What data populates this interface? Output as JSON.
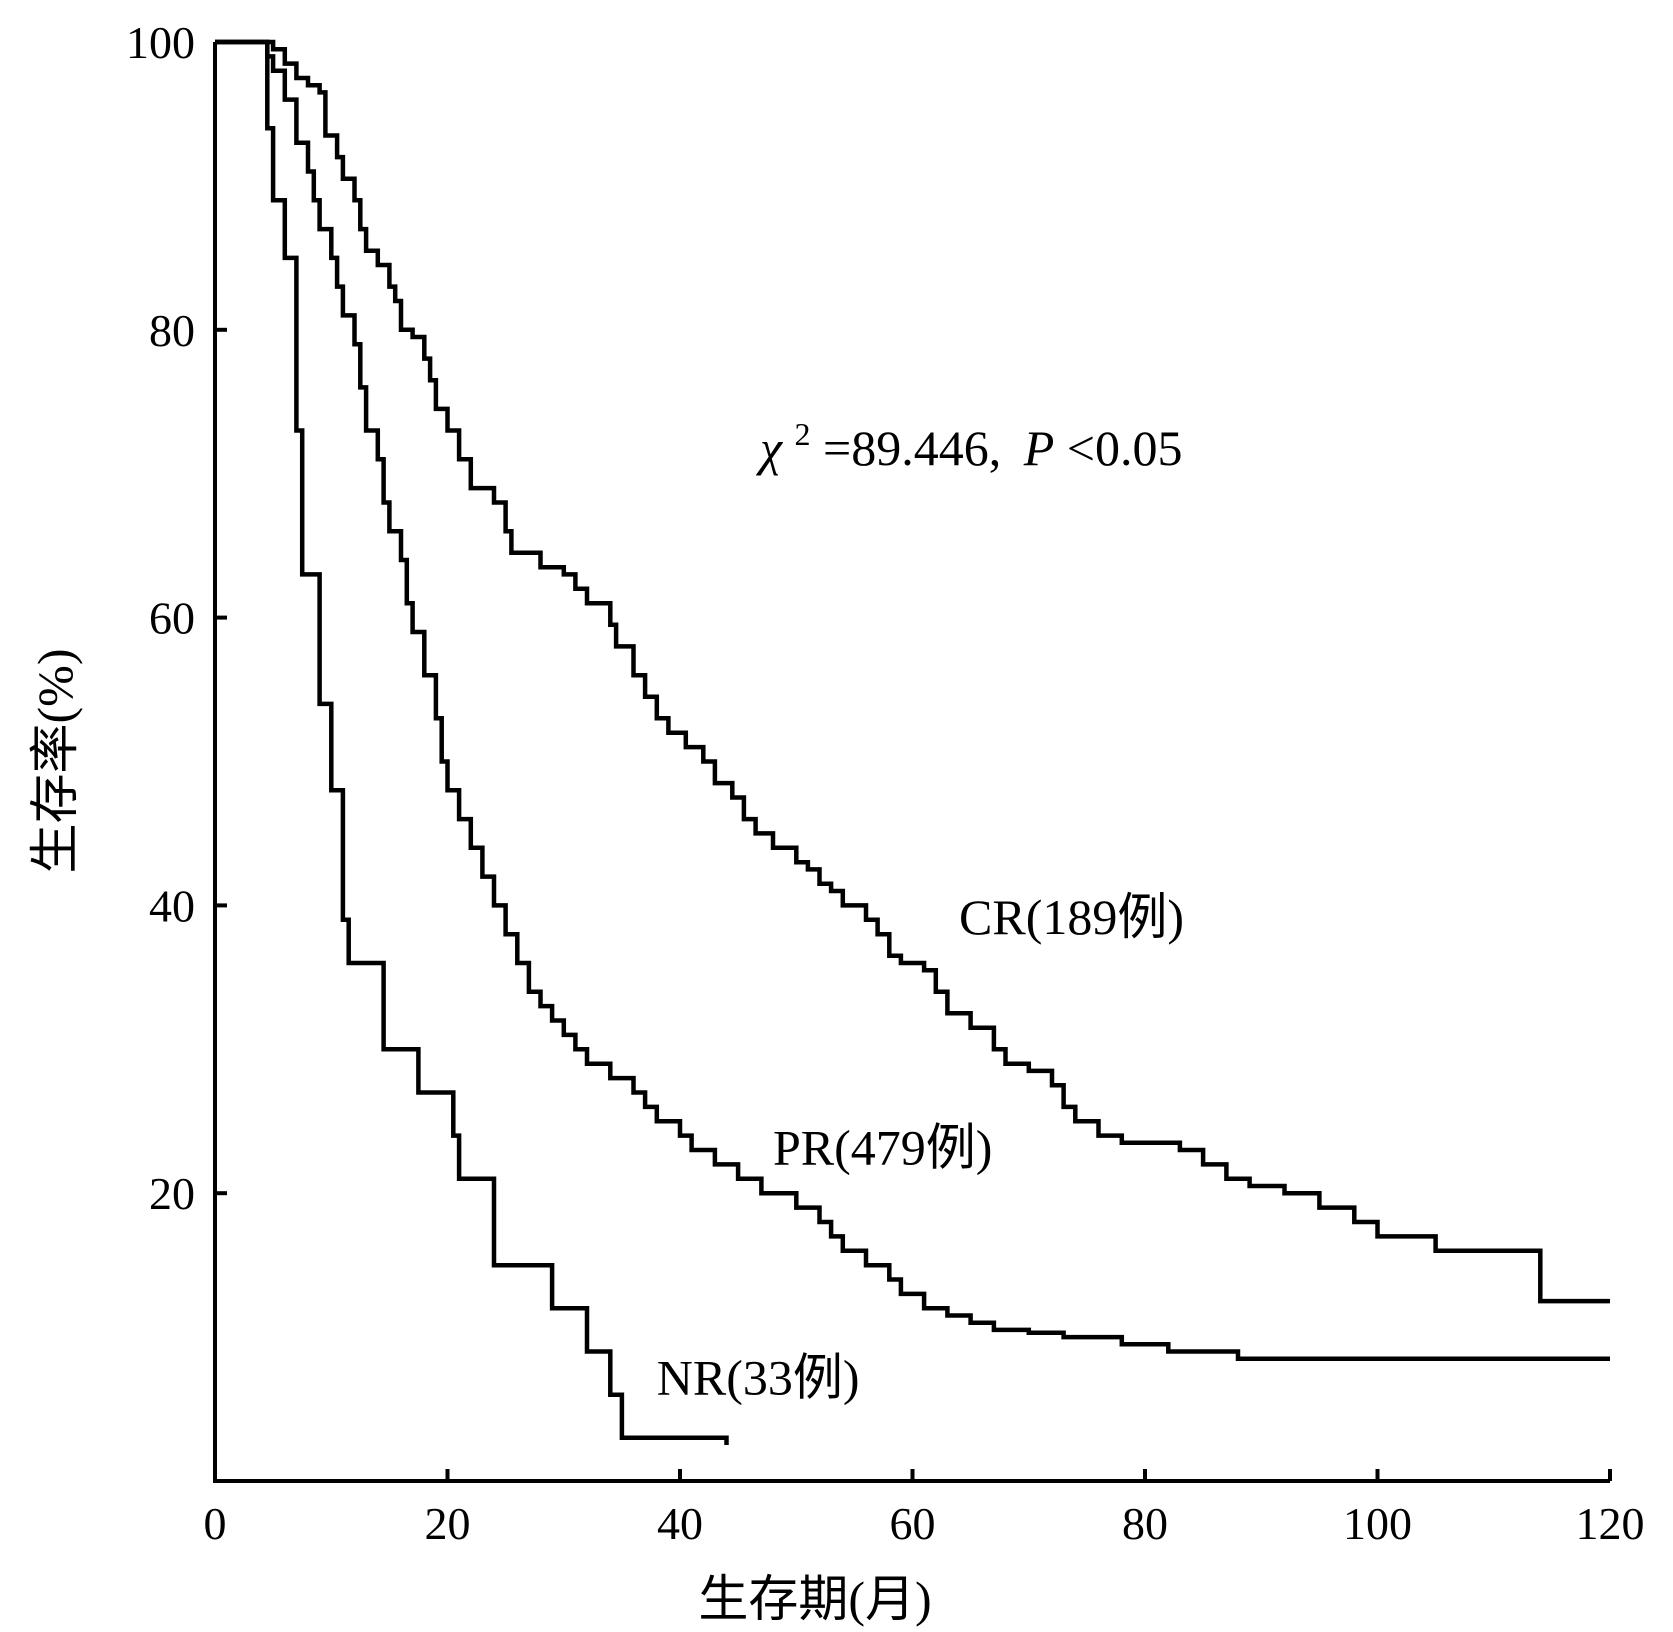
{
  "chart_data": {
    "type": "line",
    "xlabel": "生存期(月)",
    "ylabel": "生存率(%)",
    "xlim": [
      0,
      120
    ],
    "ylim": [
      0,
      100
    ],
    "xticks": [
      "0",
      "20",
      "40",
      "60",
      "80",
      "100",
      "120"
    ],
    "yticks": [
      "20",
      "40",
      "60",
      "80",
      "100"
    ],
    "step": true,
    "grid": false,
    "annotation": {
      "chi_symbol": "χ",
      "chi_sup": "2",
      "chi_value": "=89.446,",
      "p_symbol": "P",
      "p_value": "<0.05"
    },
    "series": [
      {
        "name": "CR(189例)",
        "points": [
          [
            0,
            100
          ],
          [
            4,
            100
          ],
          [
            5,
            99.5
          ],
          [
            6,
            98.5
          ],
          [
            7,
            97.5
          ],
          [
            8,
            97
          ],
          [
            9,
            96.5
          ],
          [
            9.5,
            93.5
          ],
          [
            10.5,
            92
          ],
          [
            11,
            90.5
          ],
          [
            12,
            89
          ],
          [
            12.5,
            87
          ],
          [
            13,
            85.5
          ],
          [
            14,
            84.5
          ],
          [
            15,
            83
          ],
          [
            15.5,
            82
          ],
          [
            16,
            80
          ],
          [
            17,
            79.5
          ],
          [
            18,
            78
          ],
          [
            18.5,
            76.5
          ],
          [
            19,
            74.5
          ],
          [
            20,
            73
          ],
          [
            21,
            71
          ],
          [
            22,
            69
          ],
          [
            24,
            68
          ],
          [
            25,
            66
          ],
          [
            25.5,
            64.5
          ],
          [
            28,
            63.5
          ],
          [
            30,
            63
          ],
          [
            31,
            62
          ],
          [
            32,
            61
          ],
          [
            34,
            59.5
          ],
          [
            34.5,
            58
          ],
          [
            36,
            56
          ],
          [
            37,
            54.5
          ],
          [
            38,
            53
          ],
          [
            39,
            52
          ],
          [
            40.5,
            51
          ],
          [
            42,
            50
          ],
          [
            43,
            48.5
          ],
          [
            44.5,
            47.5
          ],
          [
            45.5,
            46
          ],
          [
            46.5,
            45
          ],
          [
            48,
            44
          ],
          [
            50,
            43
          ],
          [
            51,
            42.5
          ],
          [
            52,
            41.5
          ],
          [
            53,
            41
          ],
          [
            54,
            40
          ],
          [
            56,
            39
          ],
          [
            57,
            38
          ],
          [
            58,
            36.5
          ],
          [
            59,
            36
          ],
          [
            61,
            35.5
          ],
          [
            62,
            34
          ],
          [
            63,
            32.5
          ],
          [
            65,
            31.5
          ],
          [
            67,
            30
          ],
          [
            68,
            29
          ],
          [
            70,
            28.5
          ],
          [
            72,
            27.5
          ],
          [
            73,
            26
          ],
          [
            74,
            25
          ],
          [
            76,
            24
          ],
          [
            78,
            23.5
          ],
          [
            80,
            23.5
          ],
          [
            83,
            23
          ],
          [
            85,
            22
          ],
          [
            87,
            21
          ],
          [
            89,
            20.5
          ],
          [
            92,
            20
          ],
          [
            95,
            19
          ],
          [
            98,
            18
          ],
          [
            100,
            17
          ],
          [
            105,
            16
          ],
          [
            114,
            12.5
          ],
          [
            120,
            12.5
          ]
        ]
      },
      {
        "name": "PR(479例)",
        "points": [
          [
            0,
            100
          ],
          [
            4,
            100
          ],
          [
            4.5,
            99
          ],
          [
            5,
            98
          ],
          [
            6,
            96
          ],
          [
            7,
            93
          ],
          [
            8,
            91
          ],
          [
            8.5,
            89
          ],
          [
            9,
            87
          ],
          [
            10,
            85
          ],
          [
            10.5,
            83
          ],
          [
            11,
            81
          ],
          [
            12,
            79
          ],
          [
            12.5,
            76
          ],
          [
            13,
            73
          ],
          [
            14,
            71
          ],
          [
            14.5,
            68
          ],
          [
            15,
            66
          ],
          [
            16,
            64
          ],
          [
            16.5,
            61
          ],
          [
            17,
            59
          ],
          [
            18,
            56
          ],
          [
            19,
            53
          ],
          [
            19.5,
            50
          ],
          [
            20,
            48
          ],
          [
            21,
            46
          ],
          [
            22,
            44
          ],
          [
            23,
            42
          ],
          [
            24,
            40
          ],
          [
            25,
            38
          ],
          [
            26,
            36
          ],
          [
            27,
            34
          ],
          [
            28,
            33
          ],
          [
            29,
            32
          ],
          [
            30,
            31
          ],
          [
            31,
            30
          ],
          [
            32,
            29
          ],
          [
            34,
            28
          ],
          [
            36,
            27
          ],
          [
            37,
            26
          ],
          [
            38,
            25
          ],
          [
            40,
            24
          ],
          [
            41,
            23
          ],
          [
            43,
            22
          ],
          [
            45,
            21
          ],
          [
            47,
            20
          ],
          [
            50,
            19
          ],
          [
            52,
            18
          ],
          [
            53,
            17
          ],
          [
            54,
            16
          ],
          [
            56,
            15
          ],
          [
            58,
            14
          ],
          [
            59,
            13
          ],
          [
            61,
            12
          ],
          [
            63,
            11.5
          ],
          [
            65,
            11
          ],
          [
            67,
            10.5
          ],
          [
            70,
            10.3
          ],
          [
            73,
            10
          ],
          [
            75,
            10
          ],
          [
            78,
            9.5
          ],
          [
            82,
            9
          ],
          [
            88,
            8.5
          ],
          [
            100,
            8.5
          ],
          [
            120,
            8.5
          ]
        ]
      },
      {
        "name": "NR(33例)",
        "points": [
          [
            0,
            100
          ],
          [
            4,
            100
          ],
          [
            4.5,
            94
          ],
          [
            5,
            89
          ],
          [
            6,
            85
          ],
          [
            7,
            73
          ],
          [
            7.5,
            63
          ],
          [
            9,
            54
          ],
          [
            10,
            48
          ],
          [
            11,
            39
          ],
          [
            11.5,
            36
          ],
          [
            14.5,
            30
          ],
          [
            17.5,
            27
          ],
          [
            20.5,
            24
          ],
          [
            21,
            21
          ],
          [
            24,
            15
          ],
          [
            29,
            12
          ],
          [
            32,
            9
          ],
          [
            34,
            6
          ],
          [
            35,
            3
          ],
          [
            44,
            2.5
          ]
        ]
      }
    ]
  }
}
